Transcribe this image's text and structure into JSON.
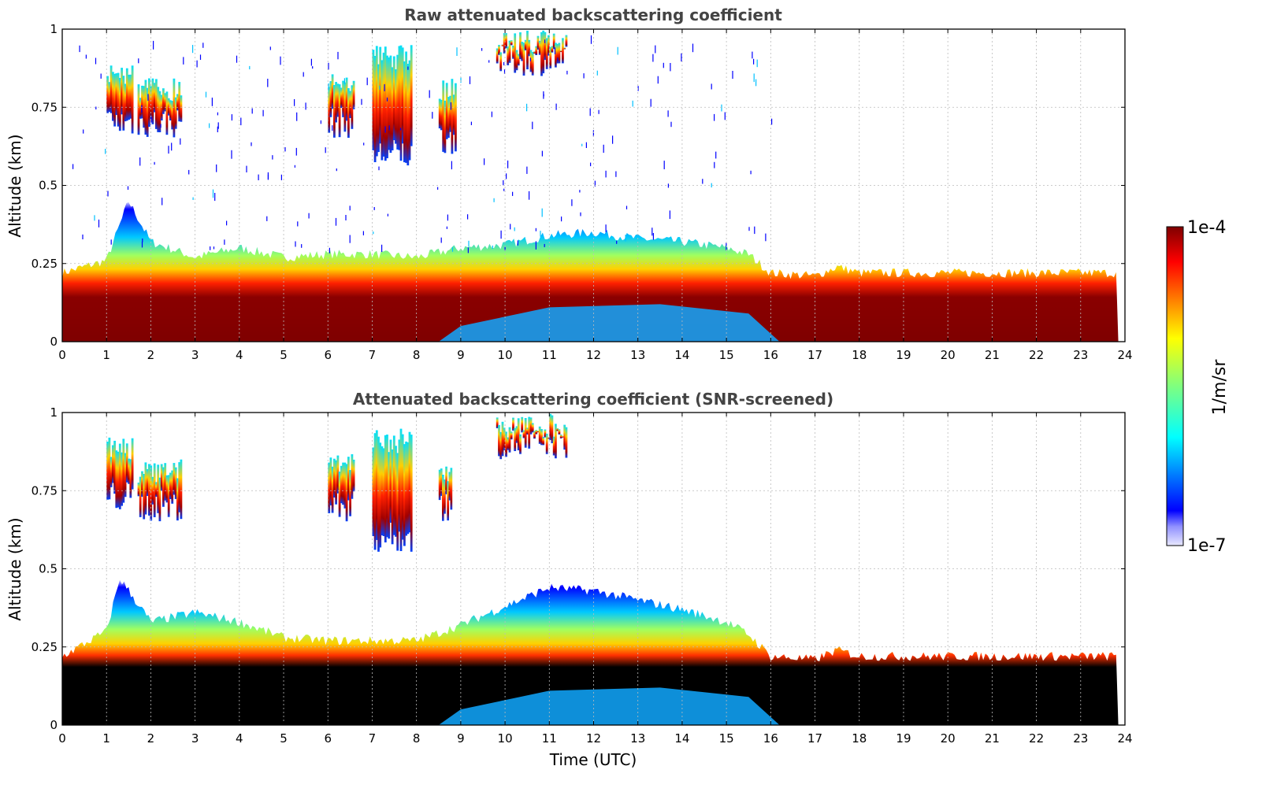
{
  "chart_data": [
    {
      "type": "heatmap",
      "title": "Raw attenuated backscattering coefficient",
      "xlabel": "",
      "ylabel": "Altitude (km)",
      "xlim": [
        0,
        24
      ],
      "ylim": [
        0,
        1
      ],
      "x_ticks": [
        "0",
        "1",
        "2",
        "3",
        "4",
        "5",
        "6",
        "7",
        "8",
        "9",
        "10",
        "11",
        "12",
        "13",
        "14",
        "15",
        "16",
        "17",
        "18",
        "19",
        "20",
        "21",
        "22",
        "23",
        "24"
      ],
      "y_ticks": [
        "0",
        "0.25",
        "0.5",
        "0.75",
        "1"
      ],
      "grid": true,
      "boundary_layer_top_km": {
        "time_utc": [
          0,
          1,
          1.5,
          2,
          3,
          4,
          5,
          6,
          7,
          8,
          9,
          10,
          11,
          12,
          13,
          14,
          15,
          15.5,
          16,
          17,
          17.5,
          18,
          19,
          24
        ],
        "top_km": [
          0.22,
          0.26,
          0.45,
          0.32,
          0.27,
          0.3,
          0.27,
          0.28,
          0.28,
          0.27,
          0.3,
          0.31,
          0.34,
          0.35,
          0.33,
          0.32,
          0.3,
          0.28,
          0.22,
          0.21,
          0.24,
          0.22,
          0.22,
          0.22
        ]
      },
      "cloud_layers": [
        {
          "time_start": 1.0,
          "time_end": 1.6,
          "base_km": 0.7,
          "top_km": 0.9
        },
        {
          "time_start": 1.7,
          "time_end": 2.7,
          "base_km": 0.7,
          "top_km": 0.85
        },
        {
          "time_start": 6.0,
          "time_end": 6.6,
          "base_km": 0.7,
          "top_km": 0.88
        },
        {
          "time_start": 7.0,
          "time_end": 7.9,
          "base_km": 0.6,
          "top_km": 0.95
        },
        {
          "time_start": 8.5,
          "time_end": 8.9,
          "base_km": 0.65,
          "top_km": 0.85
        },
        {
          "time_start": 9.8,
          "time_end": 11.4,
          "base_km": 0.9,
          "top_km": 1.0
        }
      ]
    },
    {
      "type": "heatmap",
      "title": "Attenuated backscattering coefficient (SNR-screened)",
      "xlabel": "Time (UTC)",
      "ylabel": "Altitude (km)",
      "xlim": [
        0,
        24
      ],
      "ylim": [
        0,
        1
      ],
      "x_ticks": [
        "0",
        "1",
        "2",
        "3",
        "4",
        "5",
        "6",
        "7",
        "8",
        "9",
        "10",
        "11",
        "12",
        "13",
        "14",
        "15",
        "16",
        "17",
        "18",
        "19",
        "20",
        "21",
        "22",
        "23",
        "24"
      ],
      "y_ticks": [
        "0",
        "0.25",
        "0.5",
        "0.75",
        "1"
      ],
      "grid": true,
      "boundary_layer_top_km": {
        "time_utc": [
          0,
          1,
          1.3,
          2,
          3,
          4,
          5,
          6,
          7,
          8,
          9,
          10,
          11,
          12,
          13,
          14,
          15,
          15.5,
          16,
          17,
          17.5,
          18,
          19,
          24
        ],
        "top_km": [
          0.22,
          0.3,
          0.47,
          0.33,
          0.36,
          0.33,
          0.28,
          0.27,
          0.27,
          0.27,
          0.32,
          0.38,
          0.44,
          0.43,
          0.4,
          0.37,
          0.33,
          0.29,
          0.22,
          0.21,
          0.24,
          0.22,
          0.22,
          0.22
        ]
      },
      "cloud_layers": [
        {
          "time_start": 1.0,
          "time_end": 1.6,
          "base_km": 0.73,
          "top_km": 0.93
        },
        {
          "time_start": 1.7,
          "time_end": 2.7,
          "base_km": 0.7,
          "top_km": 0.85
        },
        {
          "time_start": 6.0,
          "time_end": 6.6,
          "base_km": 0.7,
          "top_km": 0.88
        },
        {
          "time_start": 7.0,
          "time_end": 7.9,
          "base_km": 0.6,
          "top_km": 0.95
        },
        {
          "time_start": 8.5,
          "time_end": 8.8,
          "base_km": 0.7,
          "top_km": 0.85
        },
        {
          "time_start": 9.8,
          "time_end": 11.4,
          "base_km": 0.9,
          "top_km": 1.0
        }
      ]
    }
  ],
  "colorbar": {
    "label": "1/m/sr",
    "min_label": "1e-7",
    "max_label": "1e-4",
    "scale": "log",
    "colormap": "jet"
  }
}
